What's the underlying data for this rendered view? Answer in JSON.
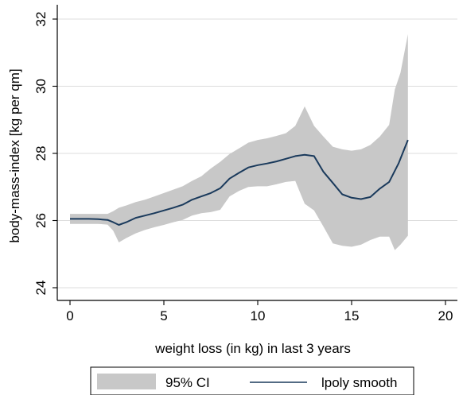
{
  "chart_data": {
    "type": "line",
    "xlabel": "weight loss (in kg) in last 3 years",
    "ylabel": "body-mass-index [kg per qm]",
    "xlim": [
      0,
      20
    ],
    "ylim": [
      24,
      32
    ],
    "xticks": [
      0,
      5,
      10,
      15,
      20
    ],
    "yticks": [
      24,
      26,
      28,
      30,
      32
    ],
    "grid": "horizontal",
    "legend_position": "bottom",
    "legend": [
      {
        "name": "95% CI",
        "kind": "area",
        "color": "#c8c8c8"
      },
      {
        "name": "lpoly smooth",
        "kind": "line",
        "color": "#1a3a5c"
      }
    ],
    "series": [
      {
        "name": "lpoly smooth",
        "x": [
          0,
          0.5,
          1,
          1.5,
          2,
          2.3,
          2.6,
          3,
          3.5,
          4,
          4.5,
          5,
          5.5,
          6,
          6.5,
          7,
          7.5,
          8,
          8.5,
          9,
          9.5,
          10,
          10.5,
          11,
          11.5,
          12,
          12.5,
          13,
          13.5,
          14,
          14.5,
          15,
          15.5,
          16,
          16.5,
          17,
          17.5,
          18
        ],
        "y": [
          26.05,
          26.05,
          26.05,
          26.04,
          26.02,
          25.95,
          25.87,
          25.95,
          26.08,
          26.15,
          26.22,
          26.3,
          26.38,
          26.47,
          26.62,
          26.72,
          26.82,
          26.96,
          27.25,
          27.42,
          27.58,
          27.65,
          27.7,
          27.76,
          27.84,
          27.92,
          27.96,
          27.92,
          27.45,
          27.12,
          26.78,
          26.68,
          26.64,
          26.7,
          26.95,
          27.15,
          27.7,
          28.4
        ]
      }
    ],
    "ci": {
      "name": "95% CI",
      "x": [
        0,
        0.5,
        1,
        1.5,
        2,
        2.3,
        2.6,
        3,
        3.5,
        4,
        4.5,
        5,
        5.5,
        6,
        6.5,
        7,
        7.5,
        8,
        8.5,
        9,
        9.5,
        10,
        10.5,
        11,
        11.5,
        12,
        12.5,
        13,
        13.5,
        14,
        14.5,
        15,
        15.5,
        16,
        16.5,
        17,
        17.3,
        17.6,
        18
      ],
      "upper": [
        26.2,
        26.2,
        26.2,
        26.2,
        26.2,
        26.28,
        26.38,
        26.45,
        26.55,
        26.62,
        26.72,
        26.82,
        26.92,
        27.02,
        27.18,
        27.32,
        27.55,
        27.75,
        27.98,
        28.15,
        28.32,
        28.4,
        28.45,
        28.52,
        28.6,
        28.82,
        29.4,
        28.82,
        28.5,
        28.2,
        28.12,
        28.08,
        28.12,
        28.25,
        28.5,
        28.85,
        29.9,
        30.4,
        31.55
      ],
      "lower": [
        25.9,
        25.9,
        25.9,
        25.9,
        25.88,
        25.7,
        25.35,
        25.48,
        25.62,
        25.72,
        25.8,
        25.87,
        25.95,
        26.02,
        26.15,
        26.22,
        26.25,
        26.32,
        26.72,
        26.88,
        27.0,
        27.02,
        27.02,
        27.08,
        27.15,
        27.18,
        26.5,
        26.3,
        25.82,
        25.32,
        25.25,
        25.22,
        25.28,
        25.42,
        25.52,
        25.52,
        25.12,
        25.28,
        25.55
      ]
    }
  },
  "colors": {
    "ci_fill": "#c8c8c8",
    "line": "#1a3a5c"
  }
}
